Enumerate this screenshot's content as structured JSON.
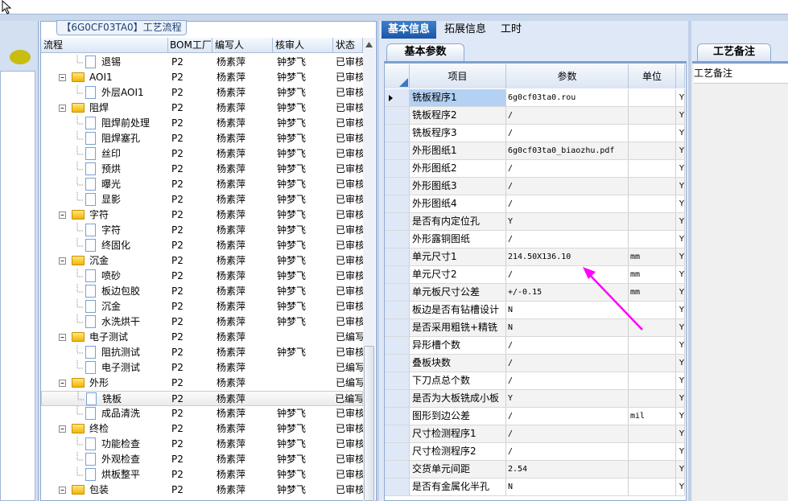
{
  "tree": {
    "title": "【6G0CF03TA0】工艺流程",
    "columns": [
      "流程",
      "BOM工厂",
      "编写人",
      "核审人",
      "状态"
    ],
    "rows": [
      {
        "label": "退锡",
        "level": 1,
        "type": "doc",
        "bom": "P2",
        "writer": "杨素萍",
        "reviewer": "钟梦飞",
        "status": "已审核"
      },
      {
        "label": "AOI1",
        "level": 0,
        "type": "folder",
        "bom": "P2",
        "writer": "杨素萍",
        "reviewer": "钟梦飞",
        "status": "已审核"
      },
      {
        "label": "外层AOI1",
        "level": 1,
        "type": "doc",
        "bom": "P2",
        "writer": "杨素萍",
        "reviewer": "钟梦飞",
        "status": "已审核"
      },
      {
        "label": "阻焊",
        "level": 0,
        "type": "folder",
        "bom": "P2",
        "writer": "杨素萍",
        "reviewer": "钟梦飞",
        "status": "已审核"
      },
      {
        "label": "阻焊前处理",
        "level": 1,
        "type": "doc",
        "bom": "P2",
        "writer": "杨素萍",
        "reviewer": "钟梦飞",
        "status": "已审核"
      },
      {
        "label": "阻焊塞孔",
        "level": 1,
        "type": "doc",
        "bom": "P2",
        "writer": "杨素萍",
        "reviewer": "钟梦飞",
        "status": "已审核"
      },
      {
        "label": "丝印",
        "level": 1,
        "type": "doc",
        "bom": "P2",
        "writer": "杨素萍",
        "reviewer": "钟梦飞",
        "status": "已审核"
      },
      {
        "label": "预烘",
        "level": 1,
        "type": "doc",
        "bom": "P2",
        "writer": "杨素萍",
        "reviewer": "钟梦飞",
        "status": "已审核"
      },
      {
        "label": "曝光",
        "level": 1,
        "type": "doc",
        "bom": "P2",
        "writer": "杨素萍",
        "reviewer": "钟梦飞",
        "status": "已审核"
      },
      {
        "label": "显影",
        "level": 1,
        "type": "doc",
        "bom": "P2",
        "writer": "杨素萍",
        "reviewer": "钟梦飞",
        "status": "已审核"
      },
      {
        "label": "字符",
        "level": 0,
        "type": "folder",
        "bom": "P2",
        "writer": "杨素萍",
        "reviewer": "钟梦飞",
        "status": "已审核"
      },
      {
        "label": "字符",
        "level": 1,
        "type": "doc",
        "bom": "P2",
        "writer": "杨素萍",
        "reviewer": "钟梦飞",
        "status": "已审核"
      },
      {
        "label": "终固化",
        "level": 1,
        "type": "doc",
        "bom": "P2",
        "writer": "杨素萍",
        "reviewer": "钟梦飞",
        "status": "已审核"
      },
      {
        "label": "沉金",
        "level": 0,
        "type": "folder",
        "bom": "P2",
        "writer": "杨素萍",
        "reviewer": "钟梦飞",
        "status": "已审核"
      },
      {
        "label": "喷砂",
        "level": 1,
        "type": "doc",
        "bom": "P2",
        "writer": "杨素萍",
        "reviewer": "钟梦飞",
        "status": "已审核"
      },
      {
        "label": "板边包胶",
        "level": 1,
        "type": "doc",
        "bom": "P2",
        "writer": "杨素萍",
        "reviewer": "钟梦飞",
        "status": "已审核"
      },
      {
        "label": "沉金",
        "level": 1,
        "type": "doc",
        "bom": "P2",
        "writer": "杨素萍",
        "reviewer": "钟梦飞",
        "status": "已审核"
      },
      {
        "label": "水洗烘干",
        "level": 1,
        "type": "doc",
        "bom": "P2",
        "writer": "杨素萍",
        "reviewer": "钟梦飞",
        "status": "已审核"
      },
      {
        "label": "电子测试",
        "level": 0,
        "type": "folder",
        "bom": "P2",
        "writer": "杨素萍",
        "reviewer": "",
        "status": "已编写"
      },
      {
        "label": "阻抗测试",
        "level": 1,
        "type": "doc",
        "bom": "P2",
        "writer": "杨素萍",
        "reviewer": "钟梦飞",
        "status": "已审核"
      },
      {
        "label": "电子测试",
        "level": 1,
        "type": "doc",
        "bom": "P2",
        "writer": "杨素萍",
        "reviewer": "",
        "status": "已编写"
      },
      {
        "label": "外形",
        "level": 0,
        "type": "folder",
        "bom": "P2",
        "writer": "杨素萍",
        "reviewer": "",
        "status": "已编写"
      },
      {
        "label": "铣板",
        "level": 1,
        "type": "doc",
        "bom": "P2",
        "writer": "杨素萍",
        "reviewer": "",
        "status": "已编写",
        "selected": true
      },
      {
        "label": "成品清洗",
        "level": 1,
        "type": "doc",
        "bom": "P2",
        "writer": "杨素萍",
        "reviewer": "钟梦飞",
        "status": "已审核"
      },
      {
        "label": "终检",
        "level": 0,
        "type": "folder",
        "bom": "P2",
        "writer": "杨素萍",
        "reviewer": "钟梦飞",
        "status": "已审核"
      },
      {
        "label": "功能检查",
        "level": 1,
        "type": "doc",
        "bom": "P2",
        "writer": "杨素萍",
        "reviewer": "钟梦飞",
        "status": "已审核"
      },
      {
        "label": "外观检查",
        "level": 1,
        "type": "doc",
        "bom": "P2",
        "writer": "杨素萍",
        "reviewer": "钟梦飞",
        "status": "已审核"
      },
      {
        "label": "烘板整平",
        "level": 1,
        "type": "doc",
        "bom": "P2",
        "writer": "杨素萍",
        "reviewer": "钟梦飞",
        "status": "已审核"
      },
      {
        "label": "包装",
        "level": 0,
        "type": "folder",
        "bom": "P2",
        "writer": "杨素萍",
        "reviewer": "钟梦飞",
        "status": "已审核"
      }
    ]
  },
  "tabs": [
    "基本信息",
    "拓展信息",
    "工时"
  ],
  "subtab": "基本参数",
  "grid": {
    "columns": [
      "项目",
      "参数",
      "单位"
    ],
    "rows": [
      [
        "铣板程序1",
        "6g0cf03ta0.rou",
        "",
        "Y"
      ],
      [
        "铣板程序2",
        "/",
        "",
        "Y"
      ],
      [
        "铣板程序3",
        "/",
        "",
        "Y"
      ],
      [
        "外形图纸1",
        "6g0cf03ta0_biaozhu.pdf",
        "",
        "Y"
      ],
      [
        "外形图纸2",
        "/",
        "",
        "Y"
      ],
      [
        "外形图纸3",
        "/",
        "",
        "Y"
      ],
      [
        "外形图纸4",
        "/",
        "",
        "Y"
      ],
      [
        "是否有内定位孔",
        "Y",
        "",
        "Y"
      ],
      [
        "外形露铜图纸",
        "/",
        "",
        "Y"
      ],
      [
        "单元尺寸1",
        "214.50X136.10",
        "mm",
        "Y"
      ],
      [
        "单元尺寸2",
        "/",
        "mm",
        "Y"
      ],
      [
        "单元板尺寸公差",
        "+/-0.15",
        "mm",
        "Y"
      ],
      [
        "板边是否有钻槽设计",
        "N",
        "",
        "Y"
      ],
      [
        "是否采用粗铣+精铣",
        "N",
        "",
        "Y"
      ],
      [
        "异形槽个数",
        "/",
        "",
        "Y"
      ],
      [
        "叠板块数",
        "/",
        "",
        "Y"
      ],
      [
        "下刀点总个数",
        "/",
        "",
        "Y"
      ],
      [
        "是否为大板铣成小板",
        "Y",
        "",
        "Y"
      ],
      [
        "图形到边公差",
        "/",
        "mil",
        "Y"
      ],
      [
        "尺寸检测程序1",
        "/",
        "",
        "Y"
      ],
      [
        "尺寸检测程序2",
        "/",
        "",
        "Y"
      ],
      [
        "交货单元间距",
        "2.54",
        "",
        "Y"
      ],
      [
        "是否有金属化半孔",
        "N",
        "",
        "Y"
      ]
    ]
  },
  "remarks": {
    "tab": "工艺备注",
    "label": "工艺备注"
  },
  "colors": {
    "tab_active": "#1b56a6",
    "selected_cell": "#b3d1f2",
    "annotation_arrow": "#ff00ff"
  }
}
